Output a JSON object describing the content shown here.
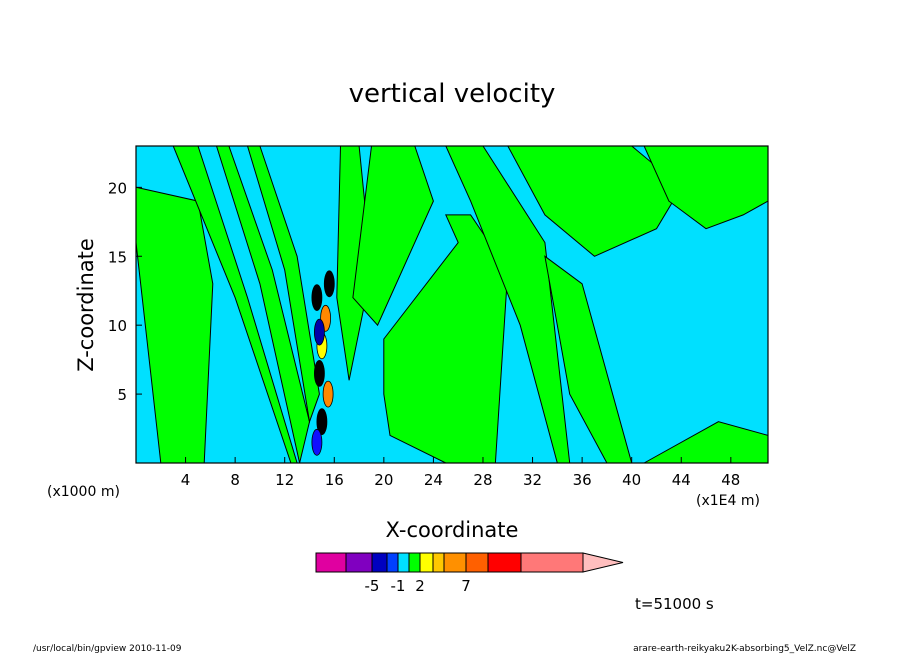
{
  "chart_data": {
    "type": "heatmap",
    "title": "vertical velocity",
    "xlabel": "X-coordinate",
    "ylabel": "Z-coordinate",
    "x_unit_left": "(x1000 m)",
    "x_unit_right": "(x1E4 m)",
    "xlim": [
      0,
      51
    ],
    "ylim": [
      0,
      23
    ],
    "x_ticks": [
      4,
      8,
      12,
      16,
      20,
      24,
      28,
      32,
      36,
      40,
      44,
      48
    ],
    "y_ticks": [
      5,
      10,
      15,
      20
    ],
    "background_color": "#00e0ff",
    "positive_color": "#00ff00",
    "regions": [
      {
        "name": "left-band",
        "x": [
          0,
          5,
          6.2,
          5.5,
          2,
          0
        ],
        "y": [
          20,
          19,
          13,
          0,
          0,
          16
        ]
      },
      {
        "name": "left-diagonal-1",
        "x": [
          3,
          5,
          9,
          13,
          12.5,
          8
        ],
        "y": [
          23,
          23,
          12,
          0,
          0,
          12
        ]
      },
      {
        "name": "left-diagonal-2",
        "x": [
          6.5,
          7.5,
          11,
          14,
          13.2,
          10
        ],
        "y": [
          23,
          23,
          14,
          3,
          0,
          13
        ]
      },
      {
        "name": "left-diagonal-3",
        "x": [
          9,
          10,
          13,
          14.8,
          14,
          12
        ],
        "y": [
          23,
          23,
          15,
          5,
          3,
          14
        ]
      },
      {
        "name": "core-right-1",
        "x": [
          16.5,
          18,
          19,
          17.2,
          16.2
        ],
        "y": [
          23,
          23,
          14,
          6,
          12
        ]
      },
      {
        "name": "core-right-2",
        "x": [
          19,
          22.5,
          24,
          19.5,
          17.5
        ],
        "y": [
          23,
          23,
          19,
          10,
          12
        ]
      },
      {
        "name": "mid-band",
        "x": [
          20,
          26,
          25,
          27,
          30,
          29,
          25,
          20.5,
          20
        ],
        "y": [
          9,
          16,
          18,
          18,
          14,
          0,
          0,
          2,
          5
        ]
      },
      {
        "name": "mid-right-plume",
        "x": [
          25,
          28,
          33,
          35,
          34,
          31,
          27
        ],
        "y": [
          23,
          23,
          16,
          0,
          0,
          10,
          19
        ]
      },
      {
        "name": "upper-right",
        "x": [
          30,
          40,
          44,
          42,
          37,
          33
        ],
        "y": [
          23,
          23,
          20,
          17,
          15,
          18
        ]
      },
      {
        "name": "right-band",
        "x": [
          33,
          36,
          40,
          38,
          35,
          34
        ],
        "y": [
          15,
          13,
          0,
          0,
          5,
          10
        ]
      },
      {
        "name": "far-right-cap",
        "x": [
          41,
          51,
          51,
          49,
          46,
          43
        ],
        "y": [
          23,
          23,
          19,
          18,
          17,
          19
        ]
      },
      {
        "name": "bottom-right",
        "x": [
          41,
          47,
          51,
          51,
          44
        ],
        "y": [
          0,
          3,
          2,
          0,
          0
        ]
      }
    ],
    "core_cells": [
      {
        "x": 14.6,
        "y": 12,
        "color": "#000000"
      },
      {
        "x": 15.3,
        "y": 10.5,
        "color": "#ff8800"
      },
      {
        "x": 15,
        "y": 8.5,
        "color": "#ffff00"
      },
      {
        "x": 14.8,
        "y": 6.5,
        "color": "#000000"
      },
      {
        "x": 15.5,
        "y": 5,
        "color": "#ff8800"
      },
      {
        "x": 15,
        "y": 3,
        "color": "#000000"
      },
      {
        "x": 14.6,
        "y": 1.5,
        "color": "#1010ff"
      },
      {
        "x": 15.6,
        "y": 13,
        "color": "#000000"
      },
      {
        "x": 14.8,
        "y": 9.5,
        "color": "#0000aa"
      }
    ],
    "colorbar": {
      "colors": [
        "#e000a0",
        "#8000c0",
        "#0000c0",
        "#0040ff",
        "#00e0ff",
        "#00ff00",
        "#ffff00",
        "#ffc800",
        "#ff9000",
        "#ff6000",
        "#ff0000",
        "#ff7878",
        "#ffbebe"
      ],
      "labels": [
        "-5",
        "-1",
        "2",
        "7"
      ],
      "label_boxes": [
        1,
        3,
        5,
        8
      ]
    },
    "time_label": "t=51000 s"
  },
  "footer": {
    "left": "/usr/local/bin/gpview  2010-11-09",
    "right": "arare-earth-reikyaku2K-absorbing5_VelZ.nc@VelZ"
  }
}
